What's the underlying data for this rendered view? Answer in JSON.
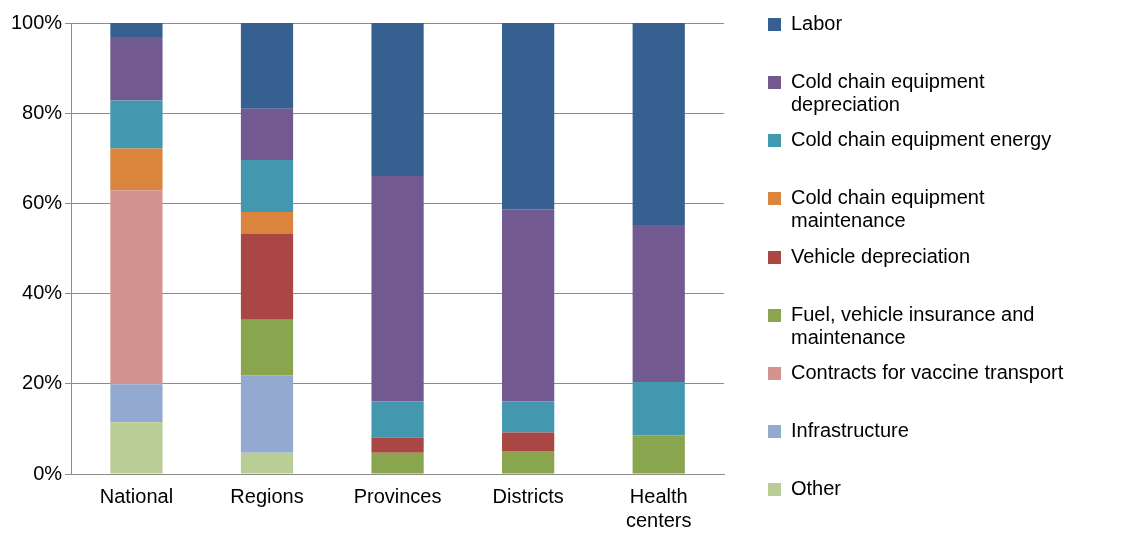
{
  "chart_data": {
    "type": "bar",
    "stacked": true,
    "categories": [
      "National",
      "Regions",
      "Provinces",
      "Districts",
      "Health centers"
    ],
    "series": [
      {
        "name": "Other",
        "color": "#b9cd96",
        "values": [
          11.5,
          4.7,
          null,
          null,
          null
        ]
      },
      {
        "name": "Infrastructure",
        "color": "#94a9d0",
        "values": [
          8.4,
          17.2,
          null,
          null,
          null
        ]
      },
      {
        "name": "Contracts for vaccine transport",
        "color": "#d39391",
        "values": [
          43,
          null,
          null,
          null,
          null
        ]
      },
      {
        "name": "Fuel, vehicle insurance and maintenance",
        "color": "#89a54e",
        "values": [
          null,
          12.3,
          4.7,
          5.1,
          8.6
        ]
      },
      {
        "name": "Vehicle depreciation",
        "color": "#aa4644",
        "values": [
          null,
          19.0,
          3.4,
          4.1,
          null
        ]
      },
      {
        "name": "Cold chain equipment maintenance",
        "color": "#db843d",
        "values": [
          9.3,
          4.9,
          null,
          null,
          null
        ]
      },
      {
        "name": "Cold chain equipment energy",
        "color": "#4398af",
        "values": [
          10.6,
          11.5,
          8.0,
          6.9,
          11.8
        ]
      },
      {
        "name": "Cold chain equipment depreciation",
        "color": "#725990",
        "values": [
          14.1,
          11.4,
          50.0,
          42.6,
          34.8
        ]
      },
      {
        "name": "Labor",
        "color": "#35608f",
        "values": [
          3.1,
          19.0,
          33.9,
          41.3,
          44.8
        ]
      }
    ],
    "ylim": [
      0,
      100
    ],
    "yticks": [
      {
        "value": 0,
        "label": "0%"
      },
      {
        "value": 20,
        "label": "20%"
      },
      {
        "value": 40,
        "label": "40%"
      },
      {
        "value": 60,
        "label": "60%"
      },
      {
        "value": 80,
        "label": "80%"
      },
      {
        "value": 100,
        "label": "100%"
      }
    ],
    "grid": "y",
    "legend": "right"
  }
}
